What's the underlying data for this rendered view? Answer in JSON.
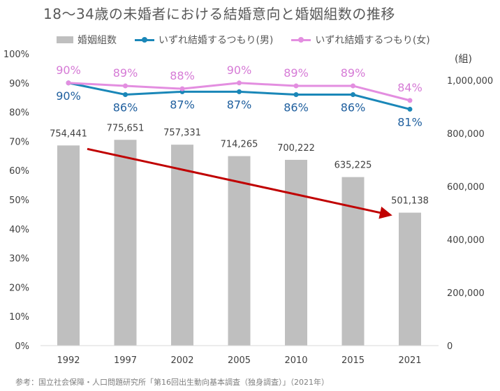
{
  "title": "18〜34歳の未婚者における結婚意向と婚姻組数の推移",
  "legend": {
    "bars": "婚姻組数",
    "male": "いずれ結婚するつもり(男)",
    "female": "いずれ結婚するつもり(女)"
  },
  "colors": {
    "bar": "#bfbfbf",
    "male": "#1a87b8",
    "male_label": "#1f5f9e",
    "female": "#e38ee0",
    "female_label": "#d67bd6",
    "trend_arrow": "#c00000",
    "axis_text": "#404040"
  },
  "source": "参考：国立社会保障・人口問題研究所「第16回出生動向基本調査（独身調査）」（2021年）",
  "chart_data": {
    "type": "bar+line",
    "categories": [
      "1992",
      "1997",
      "2002",
      "2005",
      "2010",
      "2015",
      "2021"
    ],
    "bars": {
      "name": "婚姻組数",
      "values": [
        754441,
        775651,
        757331,
        714265,
        700222,
        635225,
        501138
      ],
      "labels": [
        "754,441",
        "775,651",
        "757,331",
        "714,265",
        "700,222",
        "635,225",
        "501,138"
      ],
      "axis": "right"
    },
    "series": [
      {
        "name": "いずれ結婚するつもり(男)",
        "values": [
          90,
          86,
          87,
          87,
          86,
          86,
          81
        ],
        "labels": [
          "90%",
          "86%",
          "87%",
          "87%",
          "86%",
          "86%",
          "81%"
        ],
        "axis": "left"
      },
      {
        "name": "いずれ結婚するつもり(女)",
        "values": [
          90,
          89,
          88,
          90,
          89,
          89,
          84
        ],
        "labels": [
          "90%",
          "89%",
          "88%",
          "90%",
          "89%",
          "89%",
          "84%"
        ],
        "axis": "left"
      }
    ],
    "left_axis": {
      "min": 0,
      "max": 100,
      "ticks": [
        "0%",
        "10%",
        "20%",
        "30%",
        "40%",
        "50%",
        "60%",
        "70%",
        "80%",
        "90%",
        "100%"
      ]
    },
    "right_axis": {
      "unit": "(組)",
      "min": 0,
      "max": 1100000,
      "ticks": [
        "0",
        "200,000",
        "400,000",
        "600,000",
        "800,000",
        "1,000,000"
      ],
      "tick_values": [
        0,
        200000,
        400000,
        600000,
        800000,
        1000000
      ]
    },
    "annotation": {
      "type": "arrow",
      "description": "decreasing trend",
      "from_category": "1992",
      "to_category": "2021"
    }
  }
}
